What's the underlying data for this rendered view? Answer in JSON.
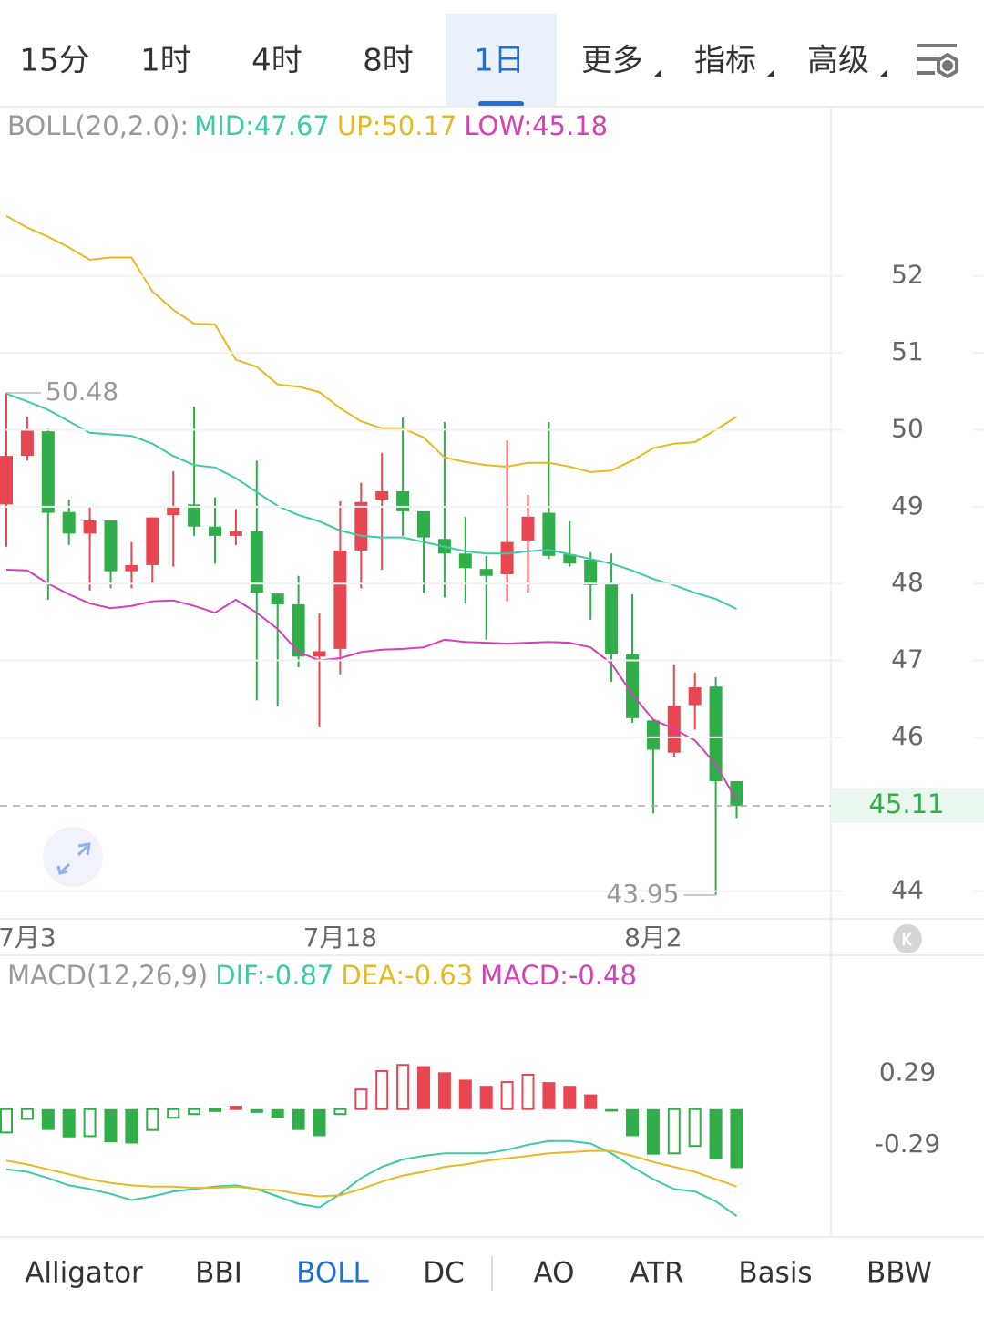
{
  "tabs": {
    "items": [
      "15分",
      "1时",
      "4时",
      "8时",
      "1日",
      "更多",
      "指标",
      "高级"
    ],
    "selected": 4
  },
  "chart_data": [
    {
      "type": "candlestick",
      "indicator": "BOLL(20,2.0):",
      "categories": [
        null,
        "7月3",
        null,
        null,
        null,
        null,
        null,
        null,
        null,
        null,
        null,
        null,
        null,
        null,
        null,
        null,
        "7月18",
        null,
        null,
        null,
        null,
        null,
        null,
        null,
        null,
        null,
        null,
        null,
        null,
        null,
        null,
        "8月2",
        null,
        null,
        null,
        null
      ],
      "open": [
        49.03,
        49.66,
        49.98,
        48.93,
        48.65,
        48.82,
        48.16,
        48.24,
        48.89,
        49.03,
        48.74,
        48.62,
        48.68,
        47.87,
        47.73,
        47.05,
        47.15,
        48.43,
        49.09,
        49.2,
        48.94,
        48.58,
        48.39,
        48.19,
        48.12,
        48.56,
        48.92,
        48.38,
        48.31,
        48.0,
        47.08,
        46.22,
        45.8,
        46.42,
        46.66,
        45.43
      ],
      "close": [
        49.66,
        50.0,
        48.92,
        48.65,
        48.82,
        48.16,
        48.24,
        48.86,
        49.0,
        48.74,
        48.62,
        48.68,
        47.88,
        47.73,
        47.05,
        47.12,
        48.43,
        49.06,
        49.2,
        48.94,
        48.6,
        48.39,
        48.2,
        48.1,
        48.54,
        48.87,
        48.36,
        48.26,
        47.98,
        47.08,
        46.25,
        45.84,
        46.41,
        46.65,
        45.43,
        45.11
      ],
      "high": [
        50.48,
        50.17,
        50.02,
        49.09,
        49.01,
        48.82,
        48.54,
        48.86,
        49.46,
        50.3,
        49.12,
        48.97,
        49.6,
        47.87,
        48.1,
        47.61,
        49.07,
        49.31,
        49.7,
        50.16,
        48.94,
        50.1,
        48.87,
        48.36,
        49.86,
        49.15,
        50.1,
        48.81,
        48.41,
        48.39,
        47.86,
        46.22,
        46.95,
        46.84,
        46.78,
        45.43
      ],
      "low": [
        48.48,
        49.6,
        47.79,
        48.5,
        47.91,
        47.94,
        47.94,
        48.0,
        48.22,
        48.62,
        48.26,
        48.5,
        46.48,
        46.4,
        46.91,
        46.13,
        46.82,
        47.94,
        48.18,
        48.62,
        47.88,
        47.82,
        47.74,
        47.27,
        47.77,
        47.88,
        48.32,
        48.22,
        47.53,
        46.72,
        46.19,
        45.01,
        45.75,
        46.1,
        43.95,
        44.95
      ],
      "up_color": "#e84752",
      "down_color": "#2fae4a",
      "series": [
        {
          "name": "MID:47.67",
          "color": "#3ec9a7",
          "values": [
            50.47,
            50.37,
            50.26,
            50.11,
            49.96,
            49.94,
            49.92,
            49.82,
            49.66,
            49.54,
            49.51,
            49.37,
            49.19,
            49.01,
            48.89,
            48.81,
            48.69,
            48.62,
            48.6,
            48.6,
            48.54,
            48.48,
            48.42,
            48.39,
            48.39,
            48.42,
            48.44,
            48.38,
            48.32,
            48.26,
            48.17,
            48.06,
            47.98,
            47.88,
            47.8,
            47.67
          ]
        },
        {
          "name": "UP:50.17",
          "color": "#e8b923",
          "values": [
            52.78,
            52.63,
            52.51,
            52.37,
            52.21,
            52.24,
            52.24,
            51.8,
            51.56,
            51.38,
            51.37,
            50.91,
            50.82,
            50.59,
            50.56,
            50.49,
            50.28,
            50.11,
            50.02,
            50.02,
            49.9,
            49.64,
            49.58,
            49.54,
            49.52,
            49.57,
            49.57,
            49.52,
            49.45,
            49.47,
            49.6,
            49.76,
            49.82,
            49.84,
            50.0,
            50.17
          ]
        },
        {
          "name": "LOW:45.18",
          "color": "#d63fb5",
          "values": [
            48.18,
            48.17,
            48.0,
            47.86,
            47.74,
            47.68,
            47.71,
            47.77,
            47.78,
            47.71,
            47.62,
            47.79,
            47.62,
            47.41,
            47.11,
            47.0,
            47.03,
            47.11,
            47.14,
            47.15,
            47.17,
            47.27,
            47.24,
            47.23,
            47.22,
            47.23,
            47.24,
            47.23,
            47.17,
            46.96,
            46.56,
            46.23,
            46.11,
            45.96,
            45.65,
            45.18
          ]
        }
      ],
      "ylim": [
        43.64,
        54.19
      ],
      "yticks": [
        44,
        46,
        47,
        48,
        49,
        50,
        51,
        52
      ],
      "grid": true
    },
    {
      "type": "macd",
      "indicator": "MACD(12,26,9)",
      "series": [
        {
          "name": "DIF:-0.87",
          "color": "#3ec9a7",
          "kind": "line",
          "values": [
            -0.49,
            -0.51,
            -0.56,
            -0.62,
            -0.65,
            -0.69,
            -0.74,
            -0.71,
            -0.67,
            -0.65,
            -0.63,
            -0.62,
            -0.65,
            -0.71,
            -0.77,
            -0.8,
            -0.69,
            -0.56,
            -0.47,
            -0.41,
            -0.38,
            -0.36,
            -0.36,
            -0.36,
            -0.33,
            -0.29,
            -0.26,
            -0.26,
            -0.28,
            -0.36,
            -0.47,
            -0.57,
            -0.65,
            -0.67,
            -0.75,
            -0.87
          ]
        },
        {
          "name": "DEA:-0.63",
          "color": "#e8b923",
          "kind": "line",
          "values": [
            -0.42,
            -0.45,
            -0.49,
            -0.53,
            -0.57,
            -0.6,
            -0.62,
            -0.63,
            -0.63,
            -0.64,
            -0.64,
            -0.63,
            -0.65,
            -0.66,
            -0.69,
            -0.71,
            -0.7,
            -0.65,
            -0.59,
            -0.54,
            -0.51,
            -0.47,
            -0.45,
            -0.42,
            -0.4,
            -0.38,
            -0.36,
            -0.35,
            -0.34,
            -0.34,
            -0.38,
            -0.43,
            -0.47,
            -0.51,
            -0.57,
            -0.63
          ]
        },
        {
          "name": "MACD:-0.48",
          "color": "#d63fb5",
          "kind": "bar",
          "values": [
            -0.19,
            -0.08,
            -0.17,
            -0.23,
            -0.22,
            -0.27,
            -0.28,
            -0.17,
            -0.07,
            -0.04,
            -0.01,
            0.02,
            -0.03,
            -0.07,
            -0.17,
            -0.22,
            -0.04,
            0.16,
            0.31,
            0.36,
            0.35,
            0.3,
            0.24,
            0.19,
            0.22,
            0.28,
            0.22,
            0.19,
            0.12,
            -0.02,
            -0.22,
            -0.37,
            -0.36,
            -0.3,
            -0.41,
            -0.48
          ]
        }
      ],
      "up_color": "#e84752",
      "down_color": "#2fae4a",
      "ylim": [
        -1.04,
        0.94
      ],
      "yticks": [
        0.29,
        -0.29
      ]
    }
  ],
  "indicator_tabs": {
    "items": [
      "Alligator",
      "BBI",
      "BOLL",
      "DC",
      "AO",
      "ATR",
      "Basis",
      "BBW"
    ],
    "selected": 2
  }
}
